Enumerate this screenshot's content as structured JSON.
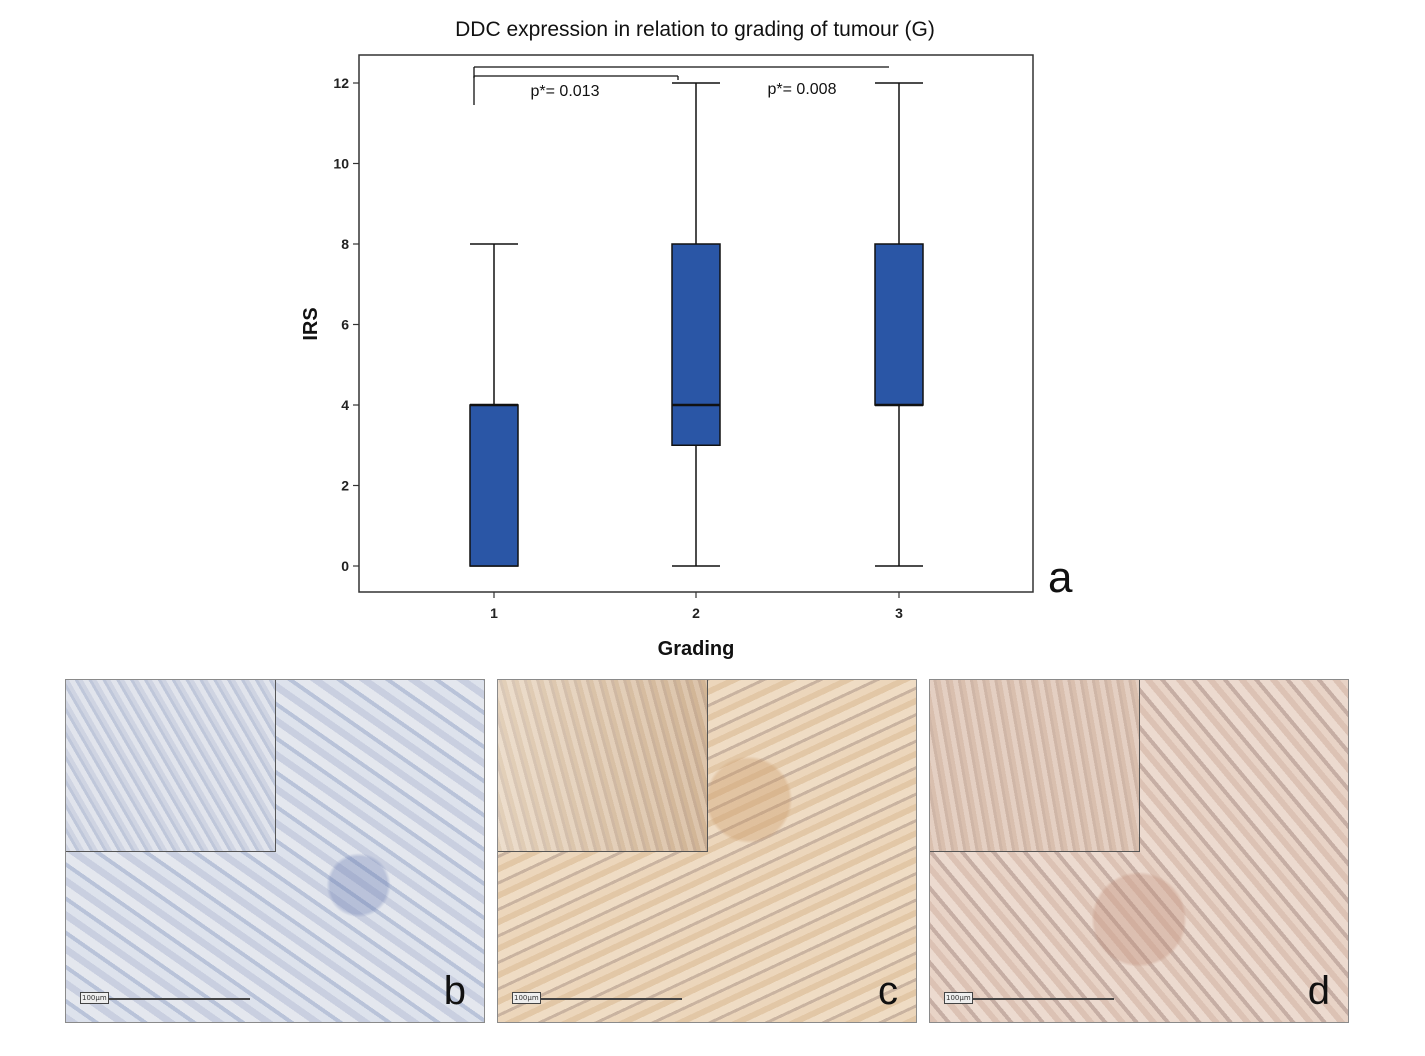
{
  "chart_data": {
    "type": "box",
    "title": "DDC expression in relation to grading of tumour (G)",
    "xlabel": "Grading",
    "ylabel": "IRS",
    "categories": [
      "1",
      "2",
      "3"
    ],
    "ylim": [
      -0.7,
      12.6
    ],
    "yticks": [
      0,
      2,
      4,
      6,
      8,
      10,
      12
    ],
    "box_color": "#2a56a6",
    "boxes": [
      {
        "category": "1",
        "min": 0,
        "q1": 0,
        "median": 4,
        "q3": 4,
        "max": 8
      },
      {
        "category": "2",
        "min": 0,
        "q1": 3,
        "median": 4,
        "q3": 8,
        "max": 12
      },
      {
        "category": "3",
        "min": 0,
        "q1": 4,
        "median": 4,
        "q3": 8,
        "max": 12
      }
    ],
    "annotations": [
      {
        "from": "1",
        "to": "2",
        "label": "p*= 0.013"
      },
      {
        "from": "1",
        "to": "3",
        "label": "p*= 0.008"
      }
    ],
    "grid": false,
    "legend": "none"
  },
  "panel_labels": {
    "a": "a",
    "b": "b",
    "c": "c",
    "d": "d"
  },
  "scale_bar_label": "100µm"
}
